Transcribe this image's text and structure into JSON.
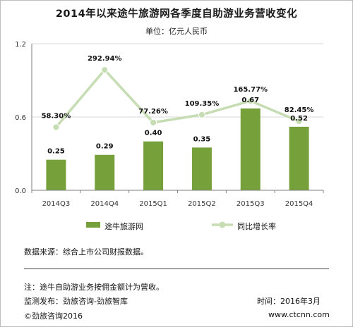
{
  "title": "2014年以来途牛旅游网各季度自助游业务营收变化",
  "subtitle": "单位：亿元人民币",
  "chart_data": {
    "type": "bar+line",
    "categories": [
      "2014Q3",
      "2014Q4",
      "2015Q1",
      "2015Q2",
      "2015Q3",
      "2015Q4"
    ],
    "series": [
      {
        "name": "途牛旅游网",
        "type": "bar",
        "values": [
          0.25,
          0.29,
          0.4,
          0.35,
          0.67,
          0.52
        ],
        "labels": [
          "0.25",
          "0.29",
          "0.40",
          "0.35",
          "0.67",
          "0.52"
        ]
      },
      {
        "name": "同比增长率",
        "type": "line",
        "values": [
          58.3,
          292.94,
          77.26,
          109.35,
          165.77,
          82.45
        ],
        "labels": [
          "58.30%",
          "292.94%",
          "77.26%",
          "109.35%",
          "165.77%",
          "82.45%"
        ]
      }
    ],
    "y_ticks": [
      "0.0",
      "0.6",
      "1.2"
    ],
    "ylim": [
      0,
      1.2
    ],
    "y2lim": [
      -200,
      400
    ],
    "grid": true,
    "legend_position": "bottom",
    "colors": {
      "bar": "#76a03a",
      "line": "#c6dcb2",
      "grid": "#d9d9d9"
    }
  },
  "notes": {
    "source": "数据来源：综合上市公司财报数据。",
    "note": "注：途牛自助游业务按佣金额计为营收。",
    "monitor": "监测发布：劲旅咨询-劲旅智库",
    "time": "时间：2016年3月",
    "copyright": "©劲旅咨询2016",
    "website": "www.ctcnn.com"
  }
}
